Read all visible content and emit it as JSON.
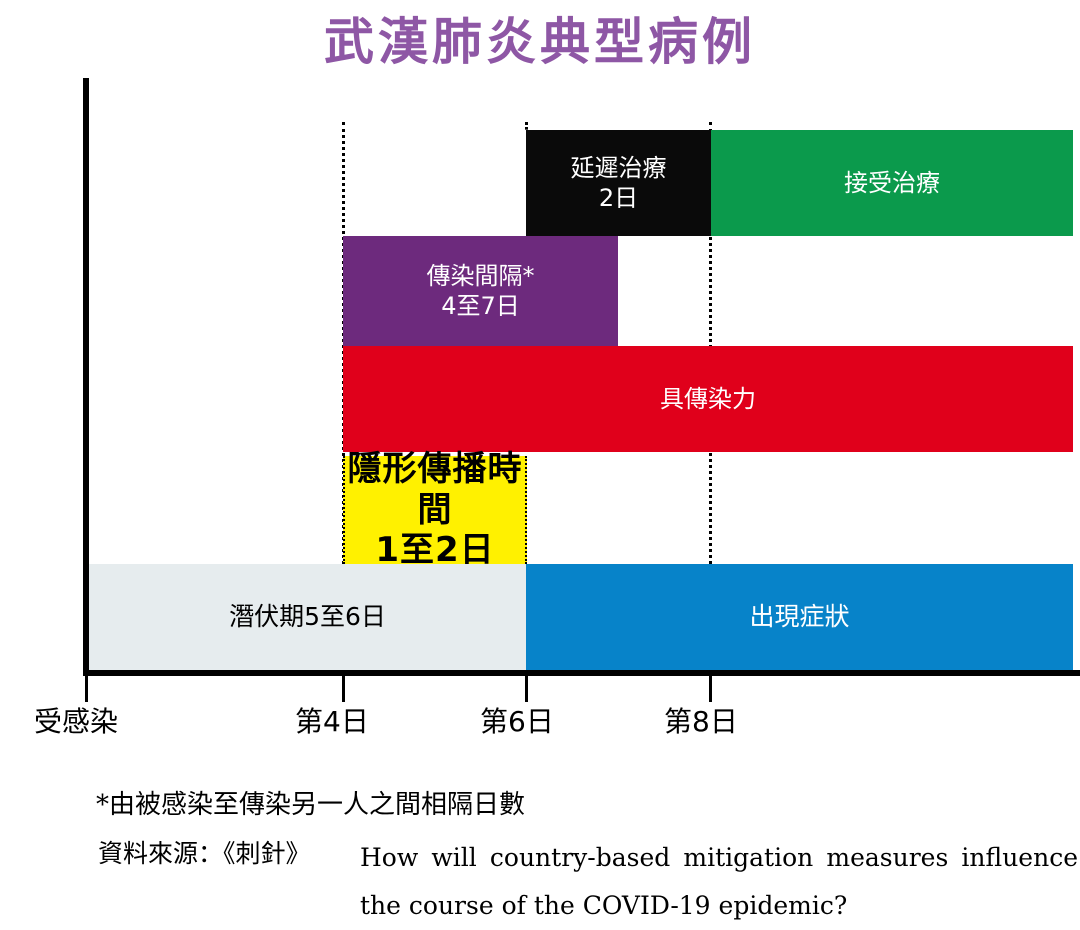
{
  "title": "武漢肺炎典型病例",
  "colors": {
    "title": "#8e57a5",
    "delayed_treatment": "#0a0a0a",
    "receive_treatment": "#0b9a4c",
    "transmission_interval": "#6d2a7d",
    "infectious": "#e0001b",
    "hidden_transmission": "#fff100",
    "incubation": "#e6ecee",
    "symptoms": "#0783c9"
  },
  "bars": {
    "delayed_treatment": {
      "line1": "延遲治療",
      "line2": "2日"
    },
    "receive_treatment": {
      "line1": "接受治療"
    },
    "transmission_interval": {
      "line1": "傳染間隔*",
      "line2": "4至7日"
    },
    "infectious": {
      "line1": "具傳染力"
    },
    "hidden_transmission": {
      "line1": "隱形傳播時間",
      "line2": "1至2日"
    },
    "incubation": {
      "line1": "潛伏期5至6日"
    },
    "symptoms": {
      "line1": "出現症狀"
    }
  },
  "axis": {
    "origin_label": "受感染",
    "day4": "第4日",
    "day6": "第6日",
    "day8": "第8日"
  },
  "footnote": "*由被感染至傳染另一人之間相隔日數",
  "source": {
    "label": "資料來源：《刺針》",
    "text": "How will country-based mitigation measures influence the course of the COVID-19 epidemic?"
  }
}
